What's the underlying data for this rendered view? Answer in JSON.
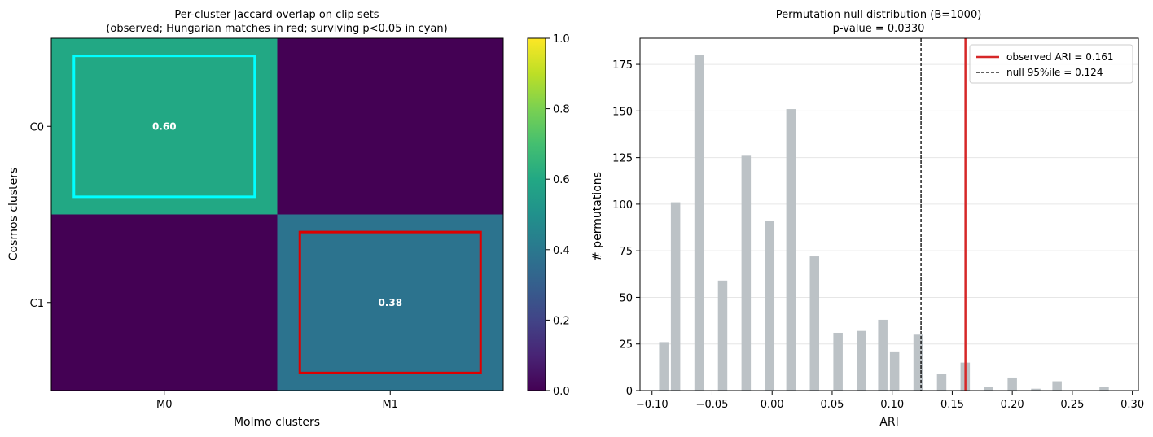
{
  "chart_data": [
    {
      "type": "heatmap",
      "title": "Per-cluster Jaccard overlap on clip sets",
      "subtitle": "(observed; Hungarian matches in red; surviving p<0.05 in cyan)",
      "xlabel": "Molmo clusters",
      "ylabel": "Cosmos clusters",
      "x_categories": [
        "M0",
        "M1"
      ],
      "y_categories": [
        "C0",
        "C1"
      ],
      "values": [
        [
          0.6,
          0.0
        ],
        [
          0.0,
          0.38
        ]
      ],
      "cell_labels": [
        [
          "0.60",
          ""
        ],
        [
          "",
          "0.38"
        ]
      ],
      "highlights": [
        {
          "row": 0,
          "col": 0,
          "color": "#00ffff"
        },
        {
          "row": 1,
          "col": 1,
          "color": "#dd0000"
        }
      ],
      "colormap": "viridis",
      "colorbar": {
        "vmin": 0.0,
        "vmax": 1.0,
        "ticks": [
          "0.0",
          "0.2",
          "0.4",
          "0.6",
          "0.8",
          "1.0"
        ]
      }
    },
    {
      "type": "bar",
      "title": "Permutation null distribution (B=1000)",
      "subtitle": "p-value = 0.0330",
      "xlabel": "ARI",
      "ylabel": "# permutations",
      "xlim": [
        -0.11,
        0.305
      ],
      "ylim": [
        0,
        189
      ],
      "x_ticks": [
        "−0.10",
        "−0.05",
        "0.00",
        "0.05",
        "0.10",
        "0.15",
        "0.20",
        "0.25",
        "0.30"
      ],
      "y_ticks": [
        "0",
        "25",
        "50",
        "75",
        "100",
        "125",
        "150",
        "175"
      ],
      "grid": "y",
      "bar_color": "#bcc2c6",
      "bar_width": 0.0078,
      "bars": [
        {
          "x": -0.0902,
          "y": 26
        },
        {
          "x": -0.0804,
          "y": 101
        },
        {
          "x": -0.0608,
          "y": 180
        },
        {
          "x": -0.0412,
          "y": 59
        },
        {
          "x": -0.0216,
          "y": 126
        },
        {
          "x": -0.002,
          "y": 91
        },
        {
          "x": 0.0157,
          "y": 151
        },
        {
          "x": 0.0353,
          "y": 72
        },
        {
          "x": 0.0549,
          "y": 31
        },
        {
          "x": 0.0745,
          "y": 32
        },
        {
          "x": 0.0922,
          "y": 38
        },
        {
          "x": 0.102,
          "y": 21
        },
        {
          "x": 0.1216,
          "y": 30
        },
        {
          "x": 0.1412,
          "y": 9
        },
        {
          "x": 0.1608,
          "y": 15
        },
        {
          "x": 0.1804,
          "y": 2
        },
        {
          "x": 0.2,
          "y": 7
        },
        {
          "x": 0.2196,
          "y": 1
        },
        {
          "x": 0.2373,
          "y": 5
        },
        {
          "x": 0.2765,
          "y": 2
        }
      ],
      "vlines": [
        {
          "x": 0.161,
          "color": "#d62728",
          "style": "solid",
          "label": "observed ARI = 0.161"
        },
        {
          "x": 0.124,
          "color": "#000000",
          "style": "dashed",
          "label": "null 95%ile = 0.124"
        }
      ],
      "legend_position": "top-right"
    }
  ]
}
